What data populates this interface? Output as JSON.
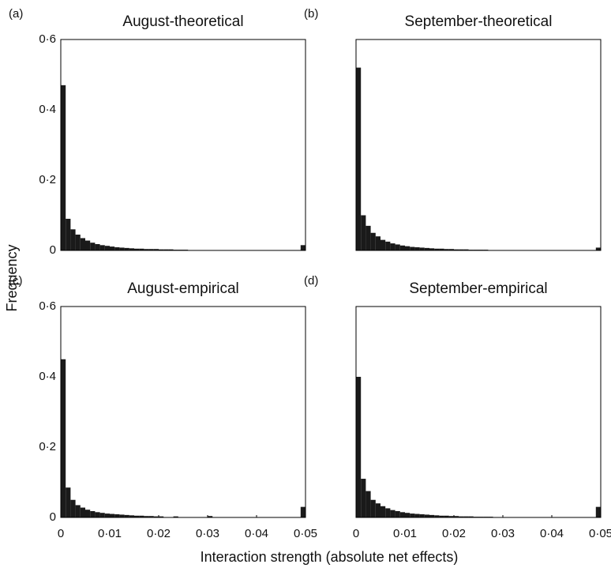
{
  "xlabel": "Interaction strength (absolute net effects)",
  "ylabel": "Frequency",
  "chart_data": [
    {
      "type": "histogram",
      "panel": "(a)",
      "title": "August-theoretical",
      "color": "#1a1a1a",
      "bins": [
        0,
        0.001,
        0.002,
        0.003,
        0.004,
        0.005,
        0.006,
        0.007,
        0.008,
        0.009,
        0.01,
        0.011,
        0.012,
        0.013,
        0.014,
        0.015,
        0.016,
        0.017,
        0.018,
        0.019,
        0.02,
        0.021,
        0.022,
        0.023,
        0.024,
        0.025,
        0.026,
        0.027,
        0.028,
        0.029,
        0.03,
        0.031,
        0.032,
        0.033,
        0.034,
        0.035,
        0.036,
        0.037,
        0.038,
        0.039,
        0.04,
        0.041,
        0.042,
        0.043,
        0.044,
        0.045,
        0.046,
        0.047,
        0.048,
        0.049,
        0.05
      ],
      "values": [
        0.47,
        0.09,
        0.06,
        0.045,
        0.035,
        0.028,
        0.022,
        0.018,
        0.015,
        0.013,
        0.011,
        0.009,
        0.008,
        0.007,
        0.006,
        0.005,
        0.005,
        0.004,
        0.004,
        0.004,
        0.003,
        0.003,
        0.003,
        0.002,
        0.002,
        0.002,
        0,
        0,
        0,
        0,
        0,
        0,
        0,
        0,
        0,
        0,
        0,
        0,
        0,
        0,
        0,
        0,
        0,
        0,
        0,
        0,
        0,
        0,
        0,
        0.015
      ],
      "xlim": [
        0,
        0.05
      ],
      "ylim": [
        0,
        0.6
      ],
      "yticks": [
        0,
        {
          "value": 0.2,
          "label": "0·2"
        },
        {
          "value": 0.4,
          "label": "0·4"
        },
        {
          "value": 0.6,
          "label": "0·6"
        }
      ]
    },
    {
      "type": "histogram",
      "panel": "(b)",
      "title": "September-theoretical",
      "color": "#1a1a1a",
      "bins": [
        0,
        0.001,
        0.002,
        0.003,
        0.004,
        0.005,
        0.006,
        0.007,
        0.008,
        0.009,
        0.01,
        0.011,
        0.012,
        0.013,
        0.014,
        0.015,
        0.016,
        0.017,
        0.018,
        0.019,
        0.02,
        0.021,
        0.022,
        0.023,
        0.024,
        0.025,
        0.026,
        0.027,
        0.028,
        0.029,
        0.03,
        0.031,
        0.032,
        0.033,
        0.034,
        0.035,
        0.036,
        0.037,
        0.038,
        0.039,
        0.04,
        0.041,
        0.042,
        0.043,
        0.044,
        0.045,
        0.046,
        0.047,
        0.048,
        0.049,
        0.05
      ],
      "values": [
        0.52,
        0.1,
        0.07,
        0.05,
        0.04,
        0.03,
        0.025,
        0.02,
        0.017,
        0.014,
        0.012,
        0.01,
        0.009,
        0.008,
        0.007,
        0.006,
        0.005,
        0.005,
        0.004,
        0.004,
        0.003,
        0.003,
        0.003,
        0.002,
        0.002,
        0.002,
        0.002,
        0,
        0,
        0,
        0,
        0,
        0,
        0,
        0,
        0,
        0,
        0,
        0,
        0,
        0,
        0,
        0,
        0,
        0,
        0,
        0,
        0,
        0,
        0.008
      ],
      "xlim": [
        0,
        0.05
      ],
      "ylim": [
        0,
        0.6
      ]
    },
    {
      "type": "histogram",
      "panel": "(c)",
      "title": "August-empirical",
      "color": "#1a1a1a",
      "bins": [
        0,
        0.001,
        0.002,
        0.003,
        0.004,
        0.005,
        0.006,
        0.007,
        0.008,
        0.009,
        0.01,
        0.011,
        0.012,
        0.013,
        0.014,
        0.015,
        0.016,
        0.017,
        0.018,
        0.019,
        0.02,
        0.021,
        0.022,
        0.023,
        0.024,
        0.025,
        0.026,
        0.027,
        0.028,
        0.029,
        0.03,
        0.031,
        0.032,
        0.033,
        0.034,
        0.035,
        0.036,
        0.037,
        0.038,
        0.039,
        0.04,
        0.041,
        0.042,
        0.043,
        0.044,
        0.045,
        0.046,
        0.047,
        0.048,
        0.049,
        0.05
      ],
      "values": [
        0.45,
        0.085,
        0.05,
        0.035,
        0.028,
        0.022,
        0.018,
        0.015,
        0.013,
        0.011,
        0.01,
        0.009,
        0.008,
        0.007,
        0.006,
        0.005,
        0.005,
        0.004,
        0.004,
        0.003,
        0.003,
        0,
        0,
        0.003,
        0,
        0,
        0,
        0,
        0,
        0,
        0.004,
        0,
        0,
        0,
        0,
        0,
        0,
        0,
        0,
        0,
        0,
        0,
        0,
        0,
        0,
        0,
        0,
        0,
        0,
        0.03
      ],
      "xlim": [
        0,
        0.05
      ],
      "ylim": [
        0,
        0.6
      ],
      "yticks": [
        0,
        {
          "value": 0.2,
          "label": "0·2"
        },
        {
          "value": 0.4,
          "label": "0·4"
        },
        {
          "value": 0.6,
          "label": "0·6"
        }
      ],
      "xticks": [
        0,
        {
          "value": 0.01,
          "label": "0·01"
        },
        {
          "value": 0.02,
          "label": "0·02"
        },
        {
          "value": 0.03,
          "label": "0·03"
        },
        {
          "value": 0.04,
          "label": "0·04"
        },
        {
          "value": 0.05,
          "label": "0·05"
        }
      ]
    },
    {
      "type": "histogram",
      "panel": "(d)",
      "title": "September-empirical",
      "color": "#1a1a1a",
      "bins": [
        0,
        0.001,
        0.002,
        0.003,
        0.004,
        0.005,
        0.006,
        0.007,
        0.008,
        0.009,
        0.01,
        0.011,
        0.012,
        0.013,
        0.014,
        0.015,
        0.016,
        0.017,
        0.018,
        0.019,
        0.02,
        0.021,
        0.022,
        0.023,
        0.024,
        0.025,
        0.026,
        0.027,
        0.028,
        0.029,
        0.03,
        0.031,
        0.032,
        0.033,
        0.034,
        0.035,
        0.036,
        0.037,
        0.038,
        0.039,
        0.04,
        0.041,
        0.042,
        0.043,
        0.044,
        0.045,
        0.046,
        0.047,
        0.048,
        0.049,
        0.05
      ],
      "values": [
        0.4,
        0.11,
        0.075,
        0.05,
        0.04,
        0.032,
        0.026,
        0.021,
        0.018,
        0.015,
        0.013,
        0.011,
        0.01,
        0.009,
        0.008,
        0.007,
        0.006,
        0.005,
        0.005,
        0.004,
        0.004,
        0.003,
        0.003,
        0.003,
        0.002,
        0.002,
        0.002,
        0.002,
        0,
        0,
        0,
        0,
        0,
        0,
        0,
        0,
        0,
        0,
        0,
        0,
        0,
        0,
        0,
        0,
        0,
        0,
        0,
        0,
        0,
        0.03
      ],
      "xlim": [
        0,
        0.05
      ],
      "ylim": [
        0,
        0.6
      ],
      "xticks": [
        0,
        {
          "value": 0.01,
          "label": "0·01"
        },
        {
          "value": 0.02,
          "label": "0·02"
        },
        {
          "value": 0.03,
          "label": "0·03"
        },
        {
          "value": 0.04,
          "label": "0·04"
        },
        {
          "value": 0.05,
          "label": "0·05"
        }
      ]
    }
  ]
}
